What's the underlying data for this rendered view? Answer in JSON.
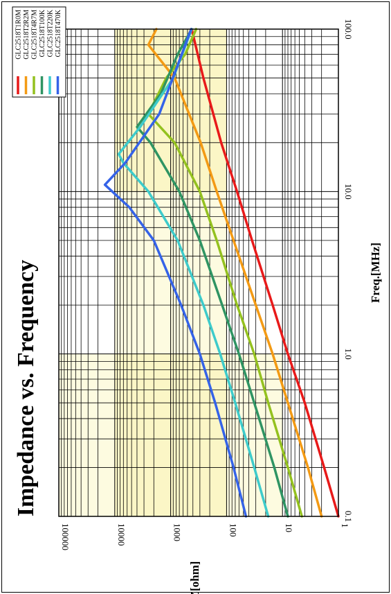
{
  "chart_data": {
    "type": "line",
    "title": "Impedance vs. Frequency",
    "xlabel": "Freq.[MHz]",
    "ylabel": "Z[ohm]",
    "x_scale": "log",
    "y_scale": "log",
    "xlim": [
      0.1,
      100
    ],
    "ylim": [
      1,
      100000
    ],
    "x_tick_labels": [
      "0.1",
      "1.0",
      "10.0",
      "100.0"
    ],
    "y_tick_labels": [
      "1",
      "10",
      "100",
      "1000",
      "10000",
      "100000"
    ],
    "grid": true,
    "orientation": "rotated 90° counter-clockwise",
    "legend_position": "top-left",
    "series": [
      {
        "name": "GLC2518T1R0M",
        "color": "#e81a1a",
        "x": [
          0.1,
          0.2,
          0.5,
          1,
          2,
          5,
          10,
          20,
          50,
          100
        ],
        "y": [
          1,
          1.8,
          4,
          8,
          15,
          35,
          65,
          125,
          260,
          420
        ]
      },
      {
        "name": "GLC2518T2R2M",
        "color": "#f39a14",
        "x": [
          0.1,
          0.2,
          0.5,
          1,
          2,
          5,
          10,
          20,
          50,
          80,
          100
        ],
        "y": [
          2,
          3.5,
          8,
          15,
          30,
          75,
          150,
          290,
          850,
          2500,
          1800
        ]
      },
      {
        "name": "GLC2518T4R7M",
        "color": "#94c11f",
        "x": [
          0.1,
          0.2,
          0.5,
          1,
          2,
          5,
          10,
          20,
          30,
          50,
          70,
          100
        ],
        "y": [
          4.5,
          8,
          18,
          32,
          65,
          150,
          300,
          850,
          2500,
          1200,
          550,
          350
        ]
      },
      {
        "name": "GLC2518T100K",
        "color": "#2f9463",
        "x": [
          0.1,
          0.2,
          0.5,
          1,
          2,
          5,
          10,
          20,
          25,
          40,
          70,
          100
        ],
        "y": [
          8,
          14,
          32,
          60,
          120,
          300,
          700,
          2300,
          4000,
          1500,
          750,
          420
        ]
      },
      {
        "name": "GLC2518T220K",
        "color": "#3ecbcb",
        "x": [
          0.1,
          0.2,
          0.5,
          1,
          2,
          5,
          10,
          15,
          17,
          25,
          50,
          100
        ],
        "y": [
          18,
          32,
          70,
          130,
          260,
          750,
          2500,
          7000,
          8500,
          3500,
          900,
          420
        ]
      },
      {
        "name": "GLC2518T470K",
        "color": "#3563e8",
        "x": [
          0.1,
          0.2,
          0.5,
          1,
          2,
          5,
          8,
          11,
          15,
          30,
          60,
          100
        ],
        "y": [
          45,
          75,
          160,
          300,
          650,
          2000,
          5500,
          15000,
          6500,
          1600,
          750,
          430
        ]
      }
    ]
  }
}
